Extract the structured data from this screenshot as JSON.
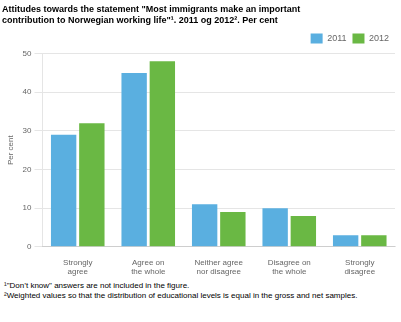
{
  "chart_data": {
    "type": "bar",
    "title": [
      "Attitudes towards the statement \"Most immigrants make an important",
      "contribution to Norwegian working life\"¹. 2011 og 2012². Per cent"
    ],
    "ylabel": "Per cent",
    "categories": [
      "Strongly\nagree",
      "Agree on\nthe whole",
      "Neither agree\nnor disagree",
      "Disagree on\nthe whole",
      "Strongly\ndisagree"
    ],
    "series": [
      {
        "name": "2011",
        "color": "#5aafe0",
        "values": [
          29,
          45,
          11,
          10,
          3
        ]
      },
      {
        "name": "2012",
        "color": "#6ab844",
        "values": [
          32,
          48,
          9,
          8,
          3
        ]
      }
    ],
    "ylim": [
      0,
      50
    ],
    "yticks": [
      0,
      10,
      20,
      30,
      40,
      50
    ],
    "grid": true,
    "legend": "upper right",
    "annotations": [
      "¹\"Don’t know\" answers are not included in the figure.",
      "²Weighted values so that the distribution of educational levels is equal in the gross and net samples."
    ]
  }
}
